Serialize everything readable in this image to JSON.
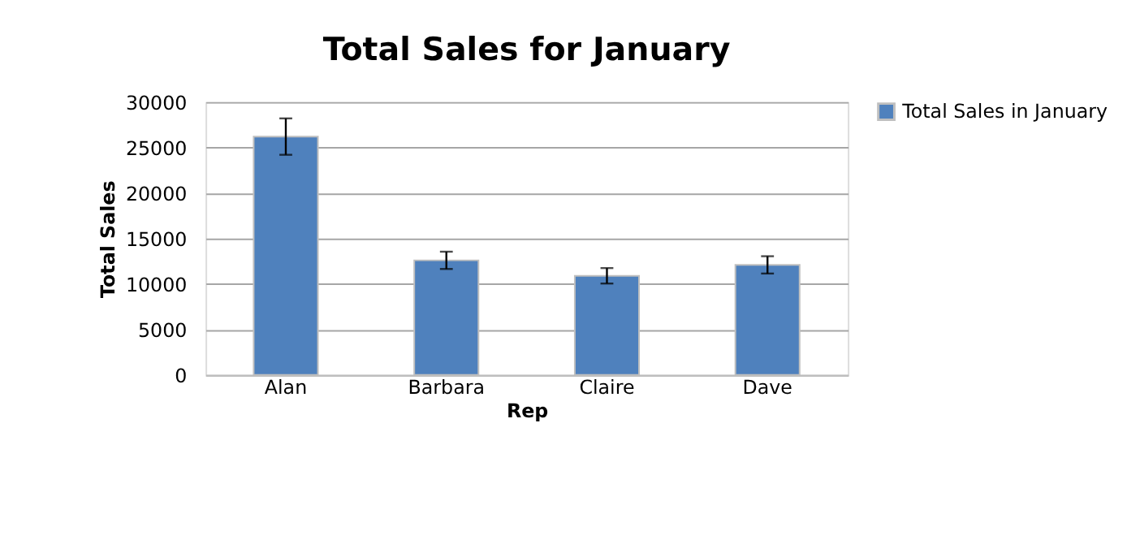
{
  "chart_data": {
    "type": "bar",
    "title": "Total Sales for January",
    "xlabel": "Rep",
    "ylabel": "Total Sales",
    "categories": [
      "Alan",
      "Barbara",
      "Claire",
      "Dave"
    ],
    "series": [
      {
        "name": "Total Sales in January",
        "color": "#4f81bd",
        "values": [
          26200,
          12600,
          10900,
          12100
        ],
        "errors": [
          2000,
          950,
          850,
          950
        ]
      }
    ],
    "ylim": [
      0,
      30000
    ],
    "yticks": [
      0,
      5000,
      10000,
      15000,
      20000,
      25000,
      30000
    ],
    "grid": "y",
    "legend": "right"
  }
}
